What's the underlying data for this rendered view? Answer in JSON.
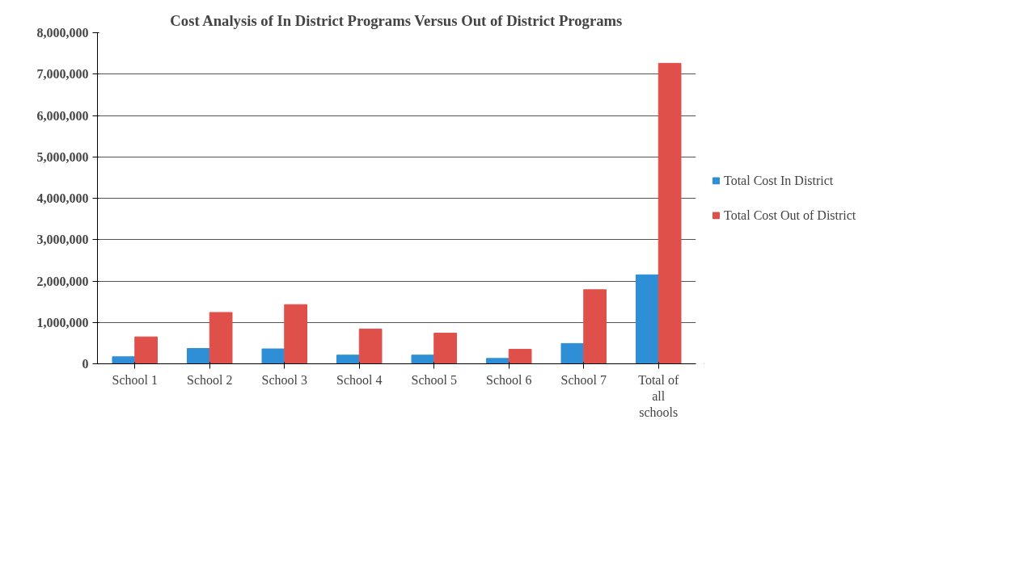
{
  "chart_data": {
    "type": "bar",
    "title": "Cost Analysis of In District Programs Versus Out of District Programs",
    "categories": [
      "School 1",
      "School 2",
      "School 3",
      "School 4",
      "School 5",
      "School 6",
      "School 7",
      "Total of all schools"
    ],
    "series": [
      {
        "name": "Total Cost In District",
        "color": "#2e8fd6",
        "values": [
          170000,
          370000,
          360000,
          210000,
          210000,
          130000,
          490000,
          2150000
        ]
      },
      {
        "name": "Total Cost Out of District",
        "color": "#e0504a",
        "values": [
          650000,
          1240000,
          1430000,
          840000,
          740000,
          350000,
          1790000,
          7260000
        ]
      }
    ],
    "ylim": [
      0,
      8000000
    ],
    "yticks": [
      {
        "value": 0,
        "label": "0"
      },
      {
        "value": 1000000,
        "label": "1,000,000"
      },
      {
        "value": 2000000,
        "label": "2,000,000"
      },
      {
        "value": 3000000,
        "label": "3,000,000"
      },
      {
        "value": 4000000,
        "label": "4,000,000"
      },
      {
        "value": 5000000,
        "label": "5,000,000"
      },
      {
        "value": 6000000,
        "label": "6,000,000"
      },
      {
        "value": 7000000,
        "label": "7,000,000"
      },
      {
        "value": 8000000,
        "label": "8,000,000"
      }
    ],
    "grid": "y",
    "legend": "right"
  }
}
